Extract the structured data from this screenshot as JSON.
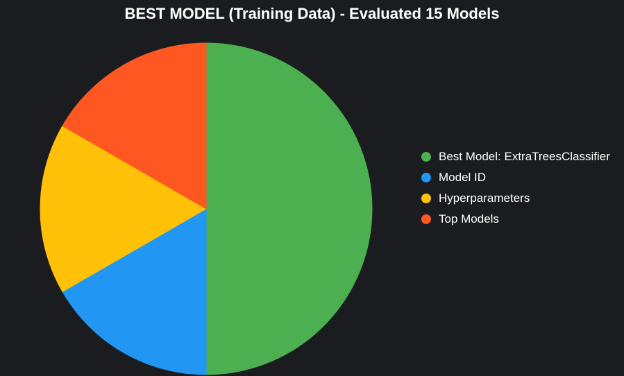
{
  "chart_data": {
    "type": "pie",
    "title": "BEST MODEL (Training Data) - Evaluated 15 Models",
    "categories": [
      "Best Model: ExtraTreesClassifier",
      "Model ID",
      "Hyperparameters",
      "Top Models"
    ],
    "values": [
      3,
      1,
      1,
      1
    ],
    "colors": [
      "#4caf50",
      "#2196f3",
      "#ffc107",
      "#ff5722"
    ],
    "start_angle_deg": 0,
    "direction": "clockwise",
    "legend_position": "right"
  }
}
